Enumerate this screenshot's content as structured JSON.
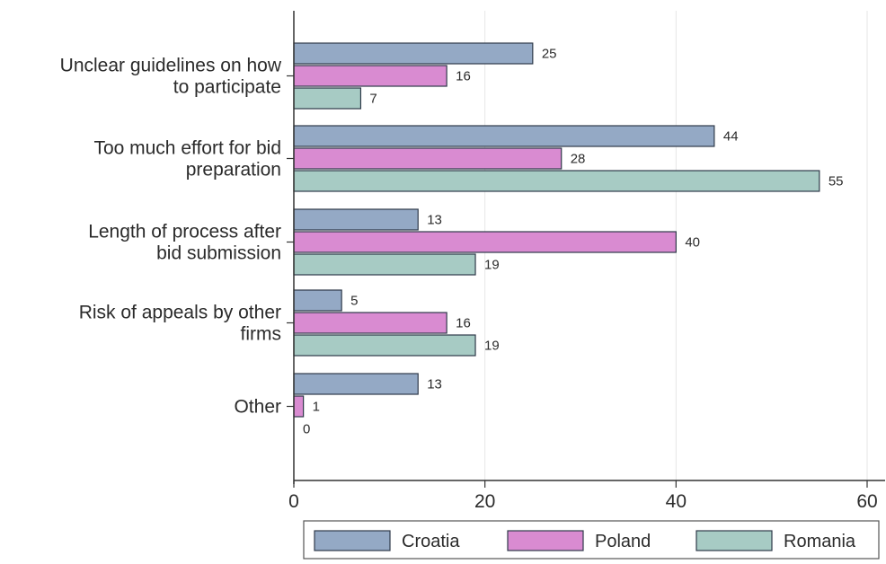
{
  "chart_data": {
    "type": "bar",
    "orientation": "horizontal",
    "categories": [
      [
        "Unclear guidelines on how",
        "to participate"
      ],
      [
        "Too much effort for bid",
        "preparation"
      ],
      [
        "Length of process after",
        "bid submission"
      ],
      [
        "Risk of appeals by other",
        "firms"
      ],
      [
        "Other"
      ]
    ],
    "series": [
      {
        "name": "Croatia",
        "color": "#94a9c5",
        "values": [
          25,
          44,
          13,
          5,
          13
        ]
      },
      {
        "name": "Poland",
        "color": "#d98bd1",
        "values": [
          16,
          28,
          40,
          16,
          1
        ]
      },
      {
        "name": "Romania",
        "color": "#a7cbc4",
        "values": [
          7,
          55,
          19,
          19,
          0
        ]
      }
    ],
    "xlim": [
      0,
      60
    ],
    "xticks": [
      0,
      20,
      40,
      60
    ],
    "grid": true,
    "legend_position": "bottom",
    "title": "",
    "xlabel": "",
    "ylabel": "",
    "bar_outline_color": "#2f3a4a"
  }
}
